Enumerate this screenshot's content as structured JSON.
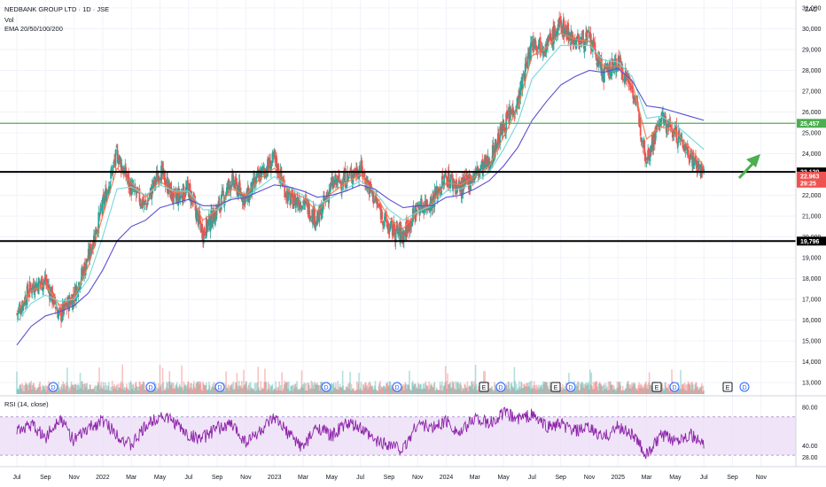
{
  "header": {
    "symbol_line": "NEDBANK GROUP LTD · 1D · JSE",
    "vol_label": "Vol",
    "ema_label": "EMA 20/50/100/200",
    "currency": "ZAC"
  },
  "rsi_panel": {
    "label": "RSI (14, close)",
    "ticks": [
      "80.00",
      "40.00",
      "28.00"
    ]
  },
  "colors": {
    "up": "#26a69a",
    "down": "#ef5350",
    "ema20": "#f57c4a",
    "ema50": "#76d7d9",
    "ema100": "#5b4fd1",
    "ema200": "#5b4fd1",
    "support_line": "#000000",
    "resistance_line": "#4caf50",
    "rsi_line": "#8e24aa",
    "rsi_band": "#e9d8f5",
    "arrow": "#4caf50"
  },
  "price_tags": [
    {
      "text": "25,457",
      "bg": "#4caf50",
      "fg": "#ffffff"
    },
    {
      "text": "23,120",
      "bg": "#000000",
      "fg": "#ffffff"
    },
    {
      "text": "22,963",
      "bg": "#ef5350",
      "fg": "#ffffff"
    },
    {
      "text": "29:25",
      "bg": "#ef5350",
      "fg": "#ffffff"
    },
    {
      "text": "19,796",
      "bg": "#000000",
      "fg": "#ffffff"
    }
  ],
  "event_markers": [
    "D",
    "D",
    "D",
    "D",
    "D",
    "E",
    "D",
    "E",
    "D",
    "E",
    "D",
    "E",
    "D"
  ],
  "chart_data": {
    "type": "candlestick",
    "title": "NEDBANK GROUP LTD · 1D · JSE",
    "currency": "ZAC",
    "y_ticks": [
      "31,000",
      "30,000",
      "29,000",
      "28,000",
      "27,000",
      "26,000",
      "25,000",
      "24,000",
      "23,000",
      "22,000",
      "21,000",
      "20,000",
      "19,000",
      "18,000",
      "17,000",
      "16,000",
      "15,000",
      "14,000",
      "13,000"
    ],
    "ylim": [
      12700,
      31300
    ],
    "x_ticks": [
      "Jul",
      "Sep",
      "Nov",
      "2022",
      "Mar",
      "May",
      "Jul",
      "Sep",
      "Nov",
      "2023",
      "Mar",
      "May",
      "Jul",
      "Sep",
      "Nov",
      "2024",
      "Mar",
      "May",
      "Jul",
      "Sep",
      "Nov",
      "2025",
      "Mar",
      "May",
      "Jul",
      "Sep",
      "Nov"
    ],
    "close_series": [
      {
        "x": "Jul 2021",
        "y": 16300
      },
      {
        "x": "Sep 2021",
        "y": 17600
      },
      {
        "x": "Oct 2021",
        "y": 17900
      },
      {
        "x": "Nov 2021",
        "y": 16200
      },
      {
        "x": "Dec 2021",
        "y": 17200
      },
      {
        "x": "Jan 2022",
        "y": 19000
      },
      {
        "x": "Feb 2022",
        "y": 21500
      },
      {
        "x": "Mar 2022",
        "y": 24000
      },
      {
        "x": "Apr 2022",
        "y": 22300
      },
      {
        "x": "May 2022",
        "y": 21500
      },
      {
        "x": "Jun 2022",
        "y": 23200
      },
      {
        "x": "Jul 2022",
        "y": 21800
      },
      {
        "x": "Aug 2022",
        "y": 22300
      },
      {
        "x": "Sep 2022",
        "y": 20200
      },
      {
        "x": "Oct 2022",
        "y": 21300
      },
      {
        "x": "Nov 2022",
        "y": 22700
      },
      {
        "x": "Dec 2022",
        "y": 21800
      },
      {
        "x": "Jan 2023",
        "y": 23000
      },
      {
        "x": "Feb 2023",
        "y": 23700
      },
      {
        "x": "Mar 2023",
        "y": 21800
      },
      {
        "x": "Apr 2023",
        "y": 21700
      },
      {
        "x": "May 2023",
        "y": 20800
      },
      {
        "x": "Jun 2023",
        "y": 22500
      },
      {
        "x": "Jul 2023",
        "y": 22800
      },
      {
        "x": "Aug 2023",
        "y": 23300
      },
      {
        "x": "Sep 2023",
        "y": 21800
      },
      {
        "x": "Oct 2023",
        "y": 20400
      },
      {
        "x": "Nov 2023",
        "y": 20100
      },
      {
        "x": "Dec 2023",
        "y": 21400
      },
      {
        "x": "Jan 2024",
        "y": 21700
      },
      {
        "x": "Feb 2024",
        "y": 22900
      },
      {
        "x": "Mar 2024",
        "y": 22300
      },
      {
        "x": "Apr 2024",
        "y": 23000
      },
      {
        "x": "May 2024",
        "y": 23600
      },
      {
        "x": "Jun 2024",
        "y": 25300
      },
      {
        "x": "Jul 2024",
        "y": 26500
      },
      {
        "x": "Aug 2024",
        "y": 29400
      },
      {
        "x": "Sep 2024",
        "y": 29200
      },
      {
        "x": "Oct 2024",
        "y": 30200
      },
      {
        "x": "Nov 2024",
        "y": 29400
      },
      {
        "x": "Dec 2024",
        "y": 29500
      },
      {
        "x": "Jan 2025",
        "y": 27800
      },
      {
        "x": "Feb 2025",
        "y": 28400
      },
      {
        "x": "Mar 2025",
        "y": 27200
      },
      {
        "x": "Apr 2025",
        "y": 23800
      },
      {
        "x": "May 2025",
        "y": 25700
      },
      {
        "x": "Jun 2025",
        "y": 25000
      },
      {
        "x": "Jul 2025",
        "y": 24000
      },
      {
        "x": "Aug 2025",
        "y": 22963
      }
    ],
    "ema_series": [
      {
        "name": "EMA 20",
        "values": [
          16400,
          17400,
          17700,
          16700,
          17100,
          18600,
          21000,
          23300,
          22600,
          21900,
          22700,
          22100,
          22200,
          20800,
          21300,
          22300,
          22000,
          22800,
          23300,
          22200,
          21900,
          21200,
          22100,
          22600,
          23000,
          22100,
          20900,
          20400,
          21200,
          21600,
          22600,
          22500,
          22900,
          23400,
          24800,
          26200,
          28700,
          29100,
          29800,
          29500,
          29400,
          28200,
          28200,
          27400,
          24700,
          25300,
          25100,
          24300,
          23400
        ]
      },
      {
        "name": "EMA 50",
        "values": [
          15900,
          16800,
          17200,
          16900,
          17000,
          18000,
          20000,
          22300,
          22400,
          22000,
          22500,
          22200,
          22200,
          21300,
          21300,
          21900,
          21900,
          22400,
          22900,
          22400,
          22000,
          21500,
          21900,
          22300,
          22700,
          22200,
          21300,
          20800,
          21200,
          21500,
          22200,
          22300,
          22600,
          23100,
          24200,
          25500,
          27600,
          28400,
          29200,
          29200,
          29200,
          28500,
          28400,
          27700,
          25700,
          25800,
          25400,
          24800,
          24200
        ]
      },
      {
        "name": "EMA 100",
        "values": [
          14800,
          15700,
          16200,
          16400,
          16700,
          17300,
          18400,
          19800,
          20500,
          20800,
          21400,
          21600,
          21800,
          21500,
          21500,
          21800,
          21900,
          22200,
          22500,
          22400,
          22200,
          21900,
          22000,
          22200,
          22500,
          22300,
          21800,
          21400,
          21500,
          21500,
          21900,
          22000,
          22300,
          22700,
          23400,
          24300,
          25600,
          26500,
          27300,
          27700,
          28000,
          27900,
          28100,
          27500,
          26300,
          26200,
          26000,
          25800,
          25600
        ]
      }
    ],
    "horizontal_levels": [
      {
        "label": "25,457",
        "y": 25457
      },
      {
        "label": "23,120",
        "y": 23120
      },
      {
        "label": "19,796",
        "y": 19796
      }
    ],
    "rsi": {
      "ylim": [
        20,
        90
      ],
      "bands": [
        30,
        70
      ],
      "values": [
        55,
        62,
        48,
        70,
        45,
        58,
        66,
        52,
        40,
        60,
        72,
        65,
        50,
        48,
        58,
        62,
        44,
        55,
        68,
        52,
        38,
        60,
        50,
        63,
        58,
        45,
        42,
        36,
        64,
        58,
        66,
        52,
        70,
        62,
        74,
        68,
        72,
        60,
        62,
        55,
        58,
        48,
        60,
        52,
        30,
        50,
        46,
        52,
        40
      ]
    }
  }
}
